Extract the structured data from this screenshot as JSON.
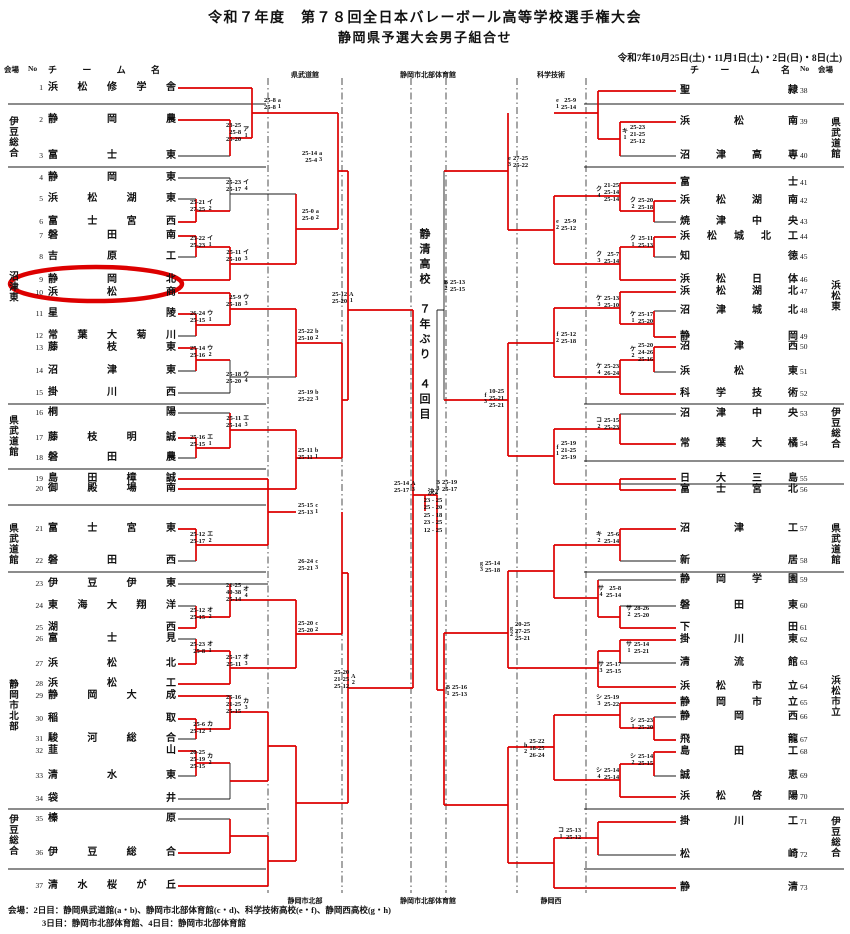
{
  "title_line1": "令和７年度　第７８回全日本バレーボール高等学校選手権大会",
  "title_line2": "静岡県予選大会男子組合せ",
  "date_note": "令和7年10月25日(土)・11月1日(土)・2日(日)・8日(土)",
  "header_left": {
    "venue": "会場",
    "no": "No",
    "team": "チーム名"
  },
  "header_right": {
    "team": "チーム名",
    "no": "No",
    "venue": "会場"
  },
  "venues_top": [
    "県武道館",
    "静岡市北部体育館",
    "科学技術"
  ],
  "venues_bottom": [
    "静岡市北部",
    "静岡市北部体育館",
    "静岡西"
  ],
  "left_teams": [
    {
      "no": 1,
      "name": "浜松修学舎",
      "red": true
    },
    {
      "no": 2,
      "name": "静岡農",
      "red": true
    },
    {
      "no": 3,
      "name": "富士東",
      "red": false
    },
    {
      "no": 4,
      "name": "静岡東",
      "red": false
    },
    {
      "no": 5,
      "name": "浜松湖東",
      "red": false
    },
    {
      "no": 6,
      "name": "富士宮西",
      "red": true
    },
    {
      "no": 7,
      "name": "磐田南",
      "red": true
    },
    {
      "no": 8,
      "name": "吉原工",
      "red": false
    },
    {
      "no": 9,
      "name": "静岡北",
      "red": true
    },
    {
      "no": 10,
      "name": "浜松商",
      "red": true
    },
    {
      "no": 11,
      "name": "星陵",
      "red": true
    },
    {
      "no": 12,
      "name": "常葉大菊川",
      "red": false
    },
    {
      "no": 13,
      "name": "藤枝東",
      "red": true
    },
    {
      "no": 14,
      "name": "沼津東",
      "red": false
    },
    {
      "no": 15,
      "name": "掛川西",
      "red": false
    },
    {
      "no": 16,
      "name": "桐陽",
      "red": false
    },
    {
      "no": 17,
      "name": "藤枝明誠",
      "red": true
    },
    {
      "no": 18,
      "name": "磐田農",
      "red": false
    },
    {
      "no": 19,
      "name": "島田樟誠",
      "red": true
    },
    {
      "no": 20,
      "name": "御殿場南",
      "red": true
    },
    {
      "no": 21,
      "name": "富士宮東",
      "red": true
    },
    {
      "no": 22,
      "name": "磐田西",
      "red": false
    },
    {
      "no": 23,
      "name": "伊豆伊東",
      "red": false
    },
    {
      "no": 24,
      "name": "東海大翔洋",
      "red": false
    },
    {
      "no": 25,
      "name": "湖西",
      "red": true
    },
    {
      "no": 26,
      "name": "富士見",
      "red": false
    },
    {
      "no": 27,
      "name": "浜松北",
      "red": true
    },
    {
      "no": 28,
      "name": "浜松工",
      "red": true
    },
    {
      "no": 29,
      "name": "静岡大成",
      "red": true
    },
    {
      "no": 30,
      "name": "稲取",
      "red": true
    },
    {
      "no": 31,
      "name": "駿河総合",
      "red": false
    },
    {
      "no": 32,
      "name": "韮山",
      "red": true
    },
    {
      "no": 33,
      "name": "清水東",
      "red": false
    },
    {
      "no": 34,
      "name": "袋井",
      "red": false
    },
    {
      "no": 35,
      "name": "榛原",
      "red": false
    },
    {
      "no": 36,
      "name": "伊豆総合",
      "red": true
    },
    {
      "no": 37,
      "name": "清水桜が丘",
      "red": true
    }
  ],
  "right_teams": [
    {
      "no": 38,
      "name": "聖隷",
      "red": true
    },
    {
      "no": 39,
      "name": "浜松南",
      "red": true
    },
    {
      "no": 40,
      "name": "沼津高専",
      "red": false
    },
    {
      "no": 41,
      "name": "富士",
      "red": true
    },
    {
      "no": 42,
      "name": "浜松湖南",
      "red": true
    },
    {
      "no": 43,
      "name": "焼津中央",
      "red": false
    },
    {
      "no": 44,
      "name": "浜松城北工",
      "red": true
    },
    {
      "no": 45,
      "name": "知徳",
      "red": false
    },
    {
      "no": 46,
      "name": "浜松日体",
      "red": true
    },
    {
      "no": 47,
      "name": "浜松湖北",
      "red": true
    },
    {
      "no": 48,
      "name": "沼津城北",
      "red": false
    },
    {
      "no": 49,
      "name": "静岡",
      "red": true
    },
    {
      "no": 50,
      "name": "沼津西",
      "red": true
    },
    {
      "no": 51,
      "name": "浜松東",
      "red": false
    },
    {
      "no": 52,
      "name": "科学技術",
      "red": true
    },
    {
      "no": 53,
      "name": "沼津中央",
      "red": false
    },
    {
      "no": 54,
      "name": "常葉大橘",
      "red": true
    },
    {
      "no": 55,
      "name": "日大三島",
      "red": true
    },
    {
      "no": 56,
      "name": "富士宮北",
      "red": true
    },
    {
      "no": 57,
      "name": "沼津工",
      "red": true
    },
    {
      "no": 58,
      "name": "新居",
      "red": false
    },
    {
      "no": 59,
      "name": "静岡学園",
      "red": false
    },
    {
      "no": 60,
      "name": "磐田東",
      "red": false
    },
    {
      "no": 61,
      "name": "下田",
      "red": true
    },
    {
      "no": 62,
      "name": "掛川東",
      "red": true
    },
    {
      "no": 63,
      "name": "清流館",
      "red": false
    },
    {
      "no": 64,
      "name": "浜松市立",
      "red": true
    },
    {
      "no": 65,
      "name": "静岡市立",
      "red": true
    },
    {
      "no": 66,
      "name": "静岡西",
      "red": false
    },
    {
      "no": 67,
      "name": "飛龍",
      "red": true
    },
    {
      "no": 68,
      "name": "島田工",
      "red": true
    },
    {
      "no": 69,
      "name": "誠恵",
      "red": false
    },
    {
      "no": 70,
      "name": "浜松啓陽",
      "red": true
    },
    {
      "no": 71,
      "name": "掛川工",
      "red": true
    },
    {
      "no": 72,
      "name": "松崎",
      "red": false
    },
    {
      "no": 73,
      "name": "静清",
      "red": true
    }
  ],
  "left_groups": [
    {
      "label": "伊豆総合"
    },
    {
      "label": "沼津東"
    },
    {
      "label": "県武道館"
    },
    {
      "label": "県武道館"
    },
    {
      "label": "静岡市北部"
    },
    {
      "label": "伊豆総合"
    }
  ],
  "right_groups": [
    {
      "label": "県武道館"
    },
    {
      "label": "浜松東"
    },
    {
      "label": "伊豆総合"
    },
    {
      "label": "県武道館"
    },
    {
      "label": "浜松市立"
    },
    {
      "label": "伊豆総合"
    }
  ],
  "champion_note": "静清高校　７年ぶり　４回目",
  "final_match": {
    "tag": "決2",
    "sets": [
      "23-25",
      "25-20",
      "25-18",
      "23-25",
      "12-25"
    ]
  },
  "matches": [
    {
      "id": "a1",
      "tag": "a1",
      "sets": [
        "25-8",
        "25-8"
      ]
    },
    {
      "id": "ア1",
      "tag": "ア1",
      "sets": [
        "23-25",
        "25-8",
        "25-20"
      ]
    },
    {
      "id": "a3",
      "tag": "a3",
      "sets": [
        "25-14",
        "25-4"
      ]
    },
    {
      "id": "イ4",
      "tag": "イ4",
      "sets": [
        "25-23",
        "25-17"
      ]
    },
    {
      "id": "イ2",
      "tag": "イ2",
      "sets": [
        "25-21",
        "27-25"
      ]
    },
    {
      "id": "a2",
      "tag": "a2",
      "sets": [
        "25-0",
        "25-0"
      ]
    },
    {
      "id": "イ1",
      "tag": "イ1",
      "sets": [
        "25-22",
        "25-23"
      ]
    },
    {
      "id": "イ3",
      "tag": "イ3",
      "sets": [
        "25-11",
        "25-10"
      ]
    },
    {
      "id": "ウ3",
      "tag": "ウ3",
      "sets": [
        "25-9",
        "25-18"
      ]
    },
    {
      "id": "ウ1",
      "tag": "ウ1",
      "sets": [
        "26-24",
        "25-15"
      ]
    },
    {
      "id": "b2",
      "tag": "b2",
      "sets": [
        "25-22",
        "25-10"
      ]
    },
    {
      "id": "ウ2",
      "tag": "ウ2",
      "sets": [
        "25-14",
        "25-16"
      ]
    },
    {
      "id": "ウ4",
      "tag": "ウ4",
      "sets": [
        "25-18",
        "25-20"
      ]
    },
    {
      "id": "b3",
      "tag": "b3",
      "sets": [
        "25-19",
        "25-22"
      ]
    },
    {
      "id": "エ3",
      "tag": "エ3",
      "sets": [
        "25-11",
        "25-14"
      ]
    },
    {
      "id": "エ1",
      "tag": "エ1",
      "sets": [
        "25-16",
        "25-15"
      ]
    },
    {
      "id": "b1",
      "tag": "b1",
      "sets": [
        "25-11",
        "25-11"
      ]
    },
    {
      "id": "A1",
      "tag": "A1",
      "sets": [
        "25-12",
        "25-20"
      ]
    },
    {
      "id": "c1",
      "tag": "c1",
      "sets": [
        "25-15",
        "25-13"
      ]
    },
    {
      "id": "エ2",
      "tag": "エ2",
      "sets": [
        "25-12",
        "25-17"
      ]
    },
    {
      "id": "c3",
      "tag": "c3",
      "sets": [
        "26-24",
        "25-21"
      ]
    },
    {
      "id": "オ4",
      "tag": "オ4",
      "sets": [
        "21-25",
        "40-38",
        "25-14"
      ]
    },
    {
      "id": "オ2",
      "tag": "オ2",
      "sets": [
        "25-12",
        "25-15"
      ]
    },
    {
      "id": "c2",
      "tag": "c2",
      "sets": [
        "25-20",
        "25-20"
      ]
    },
    {
      "id": "オ1",
      "tag": "オ1",
      "sets": [
        "25-23",
        "25-8"
      ]
    },
    {
      "id": "オ3",
      "tag": "オ3",
      "sets": [
        "25-17",
        "25-11"
      ]
    },
    {
      "id": "カ3",
      "tag": "カ3",
      "sets": [
        "25-16",
        "21-25",
        "25-15"
      ]
    },
    {
      "id": "カ1",
      "tag": "カ1",
      "sets": [
        "25-6",
        "25-12"
      ]
    },
    {
      "id": "カ2",
      "tag": "カ2",
      "sets": [
        "20-25",
        "25-19",
        "25-15"
      ]
    },
    {
      "id": "A2",
      "tag": "A2",
      "sets": [
        "25-20",
        "21-25",
        "25-12"
      ]
    },
    {
      "id": "A3",
      "tag": "A3",
      "sets": [
        "25-14",
        "25-17"
      ]
    },
    {
      "id": "e1",
      "tag": "e1",
      "sets": [
        "25-9",
        "25-14"
      ]
    },
    {
      "id": "キ1",
      "tag": "キ1",
      "sets": [
        "25-23",
        "21-25",
        "25-12"
      ]
    },
    {
      "id": "ク4",
      "tag": "ク4",
      "sets": [
        "21-25",
        "25-14",
        "25-14"
      ]
    },
    {
      "id": "ク2",
      "tag": "ク2",
      "sets": [
        "25-20",
        "25-18"
      ]
    },
    {
      "id": "ク1",
      "tag": "ク1",
      "sets": [
        "25-11",
        "25-13"
      ]
    },
    {
      "id": "ク3",
      "tag": "ク3",
      "sets": [
        "25-7",
        "25-14"
      ]
    },
    {
      "id": "e2",
      "tag": "e2",
      "sets": [
        "25-9",
        "25-12"
      ]
    },
    {
      "id": "e3",
      "tag": "e3",
      "sets": [
        "27-25",
        "25-22"
      ]
    },
    {
      "id": "ケ3",
      "tag": "ケ3",
      "sets": [
        "25-13",
        "25-10"
      ]
    },
    {
      "id": "ケ1",
      "tag": "ケ1",
      "sets": [
        "25-17",
        "25-20"
      ]
    },
    {
      "id": "ケ2",
      "tag": "ケ2",
      "sets": [
        "25-20",
        "24-26",
        "25-16"
      ]
    },
    {
      "id": "ケ4",
      "tag": "ケ4",
      "sets": [
        "25-23",
        "26-24"
      ]
    },
    {
      "id": "f2",
      "tag": "f2",
      "sets": [
        "25-12",
        "25-18"
      ]
    },
    {
      "id": "f3",
      "tag": "f3",
      "sets": [
        "10-25",
        "25-21",
        "25-21"
      ]
    },
    {
      "id": "コ2",
      "tag": "コ2",
      "sets": [
        "25-15",
        "25-23"
      ]
    },
    {
      "id": "f1",
      "tag": "f1",
      "sets": [
        "25-19",
        "21-25",
        "25-19"
      ]
    },
    {
      "id": "B2",
      "tag": "B2",
      "sets": [
        "25-13",
        "25-15"
      ]
    },
    {
      "id": "キ2",
      "tag": "キ2",
      "sets": [
        "25-6",
        "25-14"
      ]
    },
    {
      "id": "サ4",
      "tag": "サ4",
      "sets": [
        "25-8",
        "25-14"
      ]
    },
    {
      "id": "サ2",
      "tag": "サ2",
      "sets": [
        "28-26",
        "25-20"
      ]
    },
    {
      "id": "サ1",
      "tag": "サ1",
      "sets": [
        "25-14",
        "25-21"
      ]
    },
    {
      "id": "サ3",
      "tag": "サ3",
      "sets": [
        "25-17",
        "25-15"
      ]
    },
    {
      "id": "g3",
      "tag": "g3",
      "sets": [
        "25-14",
        "25-18"
      ]
    },
    {
      "id": "g2",
      "tag": "g2",
      "sets": [
        "20-25",
        "27-25",
        "25-21"
      ]
    },
    {
      "id": "シ3",
      "tag": "シ3",
      "sets": [
        "25-19",
        "25-22"
      ]
    },
    {
      "id": "シ1",
      "tag": "シ1",
      "sets": [
        "25-23",
        "25-20"
      ]
    },
    {
      "id": "シ2",
      "tag": "シ2",
      "sets": [
        "25-14",
        "25-15"
      ]
    },
    {
      "id": "シ4",
      "tag": "シ4",
      "sets": [
        "25-14",
        "25-14"
      ]
    },
    {
      "id": "h2",
      "tag": "h2",
      "sets": [
        "25-22",
        "18-25",
        "26-24"
      ]
    },
    {
      "id": "B1",
      "tag": "B1",
      "sets": [
        "25-16",
        "25-13"
      ]
    },
    {
      "id": "コ1",
      "tag": "コ1",
      "sets": [
        "25-13",
        "25-12"
      ]
    },
    {
      "id": "B3",
      "tag": "B3",
      "sets": [
        "25-19",
        "25-17"
      ]
    }
  ],
  "annotation": {
    "type": "red-ellipse",
    "around_team_no": 9,
    "around_team_name": "静岡北",
    "color": "#dd0000"
  },
  "colors": {
    "winner_line": "#dd0000",
    "line": "#1a1a1a"
  },
  "footnotes": [
    "会場：2日目：静岡県武道館(a・b)、静岡市北部体育館(c・d)、科学技術高校(e・f)、静岡西高校(g・h)",
    "3日目：静岡市北部体育館、4日目：静岡市北部体育館"
  ]
}
